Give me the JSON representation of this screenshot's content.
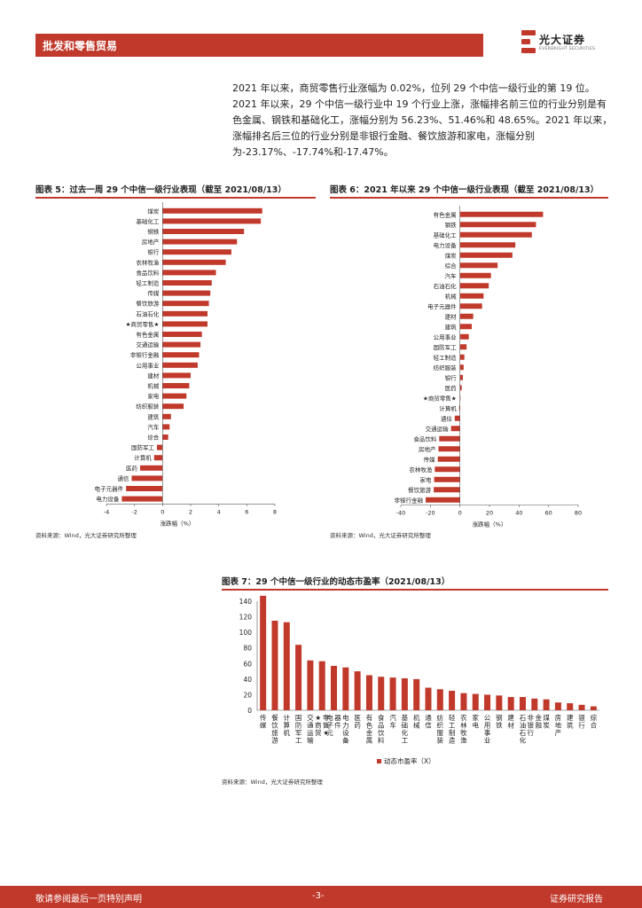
{
  "header": {
    "section": "批发和零售贸易",
    "brand": "光大证券",
    "brand_en": "EVERBRIGHT SECURITIES"
  },
  "intro": "2021 年以来，商贸零售行业涨幅为 0.02%，位列 29 个中信一级行业的第 19 位。2021 年以来，29 个中信一级行业中 19 个行业上涨，涨幅排名前三位的行业分别是有色金属、钢铁和基础化工，涨幅分别为 56.23%、51.46%和 48.65%。2021 年以来，涨幅排名后三位的行业分别是非银行金融、餐饮旅游和家电，涨幅分别为-23.17%、-17.74%和-17.47%。",
  "figures": {
    "fig5_title": "图表 5：过去一周 29 个中信一级行业表现（截至 2021/08/13）",
    "fig6_title": "图表 6：2021 年以来 29 个中信一级行业表现（截至 2021/08/13）",
    "fig7_title": "图表 7：29 个中信一级行业的动态市盈率（2021/08/13）",
    "source": "资料来源：Wind，光大证券研究所整理"
  },
  "footer": {
    "left": "敬请参阅最后一页特别声明",
    "page": "-3-",
    "right": "证券研究报告"
  },
  "colors": {
    "accent": "#c0392b",
    "bar": "#c0392b"
  },
  "chart_data": [
    {
      "type": "bar",
      "orientation": "horizontal",
      "xlabel": "涨跌幅（%）",
      "xlim": [
        -4,
        8
      ],
      "xticks": [
        -4,
        -2,
        0,
        2,
        4,
        6,
        8
      ],
      "categories": [
        "煤炭",
        "基础化工",
        "钢铁",
        "房地产",
        "银行",
        "农林牧渔",
        "食品饮料",
        "轻工制造",
        "传媒",
        "餐饮旅游",
        "石油石化",
        "★商贸零售★",
        "有色金属",
        "交通运输",
        "非银行金融",
        "公用事业",
        "建材",
        "机械",
        "家电",
        "纺织服装",
        "建筑",
        "汽车",
        "综合",
        "国防军工",
        "计算机",
        "医药",
        "通信",
        "电子元器件",
        "电力设备"
      ],
      "values": [
        7.1,
        7.0,
        5.8,
        5.3,
        4.9,
        4.5,
        3.8,
        3.5,
        3.4,
        3.3,
        3.2,
        3.2,
        2.8,
        2.7,
        2.6,
        2.5,
        2.0,
        1.9,
        1.7,
        1.5,
        0.6,
        0.5,
        0.4,
        -0.4,
        -0.6,
        -1.6,
        -2.2,
        -2.6,
        -2.9
      ]
    },
    {
      "type": "bar",
      "orientation": "horizontal",
      "xlabel": "涨跌幅（%）",
      "xlim": [
        -40,
        80
      ],
      "xticks": [
        -40,
        -20,
        0,
        20,
        40,
        60,
        80
      ],
      "categories": [
        "有色金属",
        "钢铁",
        "基础化工",
        "电力设备",
        "煤炭",
        "综合",
        "汽车",
        "石油石化",
        "机械",
        "电子元器件",
        "建材",
        "建筑",
        "公用事业",
        "国防军工",
        "轻工制造",
        "纺织服装",
        "银行",
        "医药",
        "★商贸零售★",
        "计算机",
        "通信",
        "交通运输",
        "食品饮料",
        "房地产",
        "传媒",
        "农林牧渔",
        "家电",
        "餐饮旅游",
        "非银行金融"
      ],
      "values": [
        56.23,
        51.46,
        48.65,
        37.5,
        35.5,
        25.5,
        21.0,
        19.5,
        16.0,
        15.0,
        9.0,
        8.0,
        6.0,
        4.5,
        3.0,
        2.5,
        2.0,
        1.2,
        0.02,
        -0.5,
        -3.5,
        -6.0,
        -14.0,
        -14.5,
        -15.0,
        -17.0,
        -17.47,
        -17.74,
        -23.17
      ]
    },
    {
      "type": "bar",
      "orientation": "vertical",
      "ylim": [
        0,
        140
      ],
      "yticks": [
        0,
        20,
        40,
        60,
        80,
        100,
        120,
        140
      ],
      "series_name": "动态市盈率（X）",
      "categories": [
        "传媒",
        "餐饮旅游",
        "计算机",
        "国防军工",
        "交通运输",
        "★商贸零售★",
        "电子元器件",
        "电力设备",
        "医药",
        "有色金属",
        "食品饮料",
        "汽车",
        "基础化工",
        "机械",
        "通信",
        "纺织服装",
        "轻工制造",
        "农林牧渔",
        "家电",
        "公用事业",
        "钢铁",
        "建材",
        "石油石化",
        "非银行金融",
        "煤炭",
        "房地产",
        "建筑",
        "银行",
        "综合"
      ],
      "values": [
        147,
        115,
        113,
        84,
        64,
        63,
        57,
        55,
        50,
        45,
        43,
        42,
        41,
        40,
        29,
        27,
        25,
        22,
        21,
        20,
        19,
        17,
        17,
        15,
        14,
        10,
        9,
        7,
        5
      ]
    }
  ]
}
